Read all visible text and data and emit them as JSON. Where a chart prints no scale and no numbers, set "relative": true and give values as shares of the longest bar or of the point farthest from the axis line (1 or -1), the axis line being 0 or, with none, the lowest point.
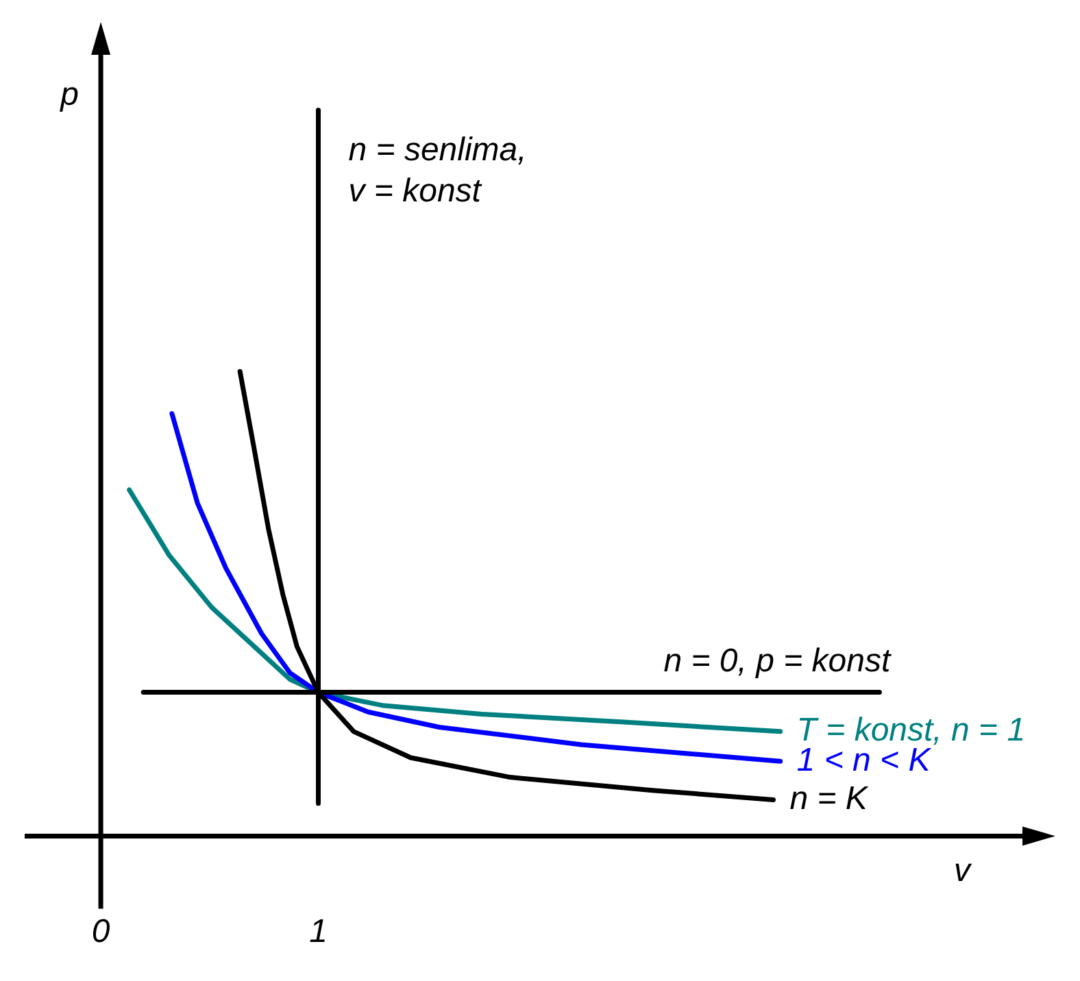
{
  "chart_data": {
    "type": "line",
    "relative": true,
    "xlabel": "v",
    "ylabel": "p",
    "xlim": [
      -0.35,
      4.25
    ],
    "xticks": [
      0,
      1
    ],
    "grid": false,
    "legend": false,
    "marker": "none",
    "line_style": "solid",
    "series": [
      {
        "name": "n = senlima, v = konst",
        "color": "#000000",
        "x": [
          1,
          1
        ],
        "values": [
          0.045,
          1
        ]
      },
      {
        "name": "n = 0, p = konst",
        "color": "#000000",
        "x": [
          0.196,
          3.58
        ],
        "values": [
          0.198,
          0.198
        ]
      },
      {
        "name": "n = K",
        "color": "#000000",
        "x": [
          0.64,
          0.706,
          0.771,
          0.837,
          0.902,
          1,
          1.163,
          1.425,
          1.882,
          2.536,
          3.092
        ],
        "values": [
          0.64,
          0.532,
          0.423,
          0.333,
          0.261,
          0.198,
          0.144,
          0.108,
          0.081,
          0.063,
          0.05
        ]
      },
      {
        "name": "1 < n < K",
        "color": "#0000ff",
        "x": [
          0.327,
          0.444,
          0.575,
          0.739,
          0.869,
          1,
          1.229,
          1.556,
          2.209,
          3.124
        ],
        "values": [
          0.582,
          0.459,
          0.369,
          0.279,
          0.225,
          0.198,
          0.171,
          0.15,
          0.126,
          0.103
        ]
      },
      {
        "name": "T = konst, n = 1",
        "color": "#008080",
        "x": [
          0.131,
          0.314,
          0.51,
          0.706,
          0.869,
          1,
          1.294,
          1.752,
          2.405,
          3.124
        ],
        "values": [
          0.477,
          0.387,
          0.315,
          0.261,
          0.216,
          0.198,
          0.18,
          0.168,
          0.157,
          0.144
        ]
      }
    ]
  }
}
